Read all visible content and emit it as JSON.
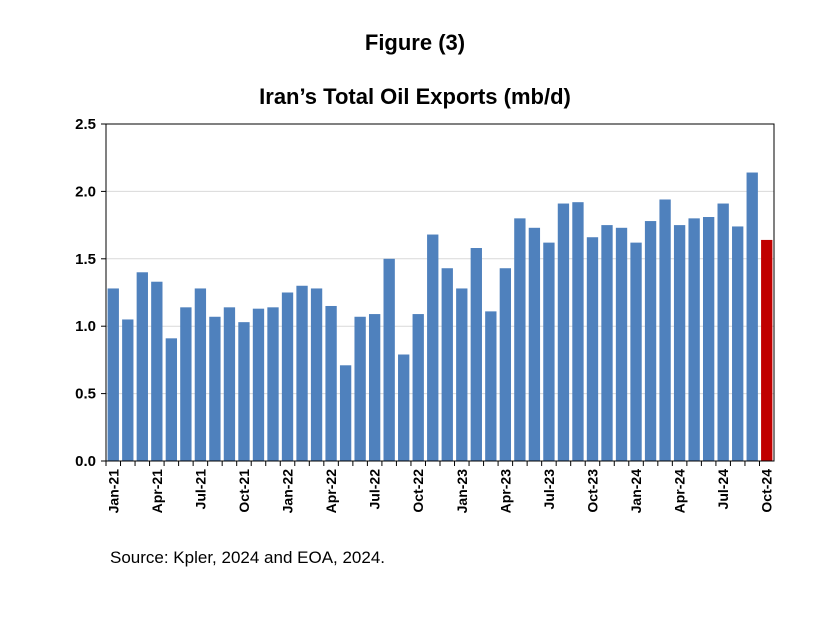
{
  "figure_label": "Figure (3)",
  "source": "Source: Kpler, 2024 and EOA, 2024.",
  "colors": {
    "bar": "#4f81bd",
    "highlight": "#c00000",
    "grid": "#d9d9d9",
    "axis": "#000000"
  },
  "chart_data": {
    "type": "bar",
    "title": "Iran’s Total Oil Exports (mb/d)",
    "xlabel": "",
    "ylabel": "",
    "ylim": [
      0,
      2.5
    ],
    "yticks": [
      "0.0",
      "0.5",
      "1.0",
      "1.5",
      "2.0",
      "2.5"
    ],
    "grid": true,
    "categories": [
      "Jan-21",
      "Feb-21",
      "Mar-21",
      "Apr-21",
      "May-21",
      "Jun-21",
      "Jul-21",
      "Aug-21",
      "Sep-21",
      "Oct-21",
      "Nov-21",
      "Dec-21",
      "Jan-22",
      "Feb-22",
      "Mar-22",
      "Apr-22",
      "May-22",
      "Jun-22",
      "Jul-22",
      "Aug-22",
      "Sep-22",
      "Oct-22",
      "Nov-22",
      "Dec-22",
      "Jan-23",
      "Feb-23",
      "Mar-23",
      "Apr-23",
      "May-23",
      "Jun-23",
      "Jul-23",
      "Aug-23",
      "Sep-23",
      "Oct-23",
      "Nov-23",
      "Dec-23",
      "Jan-24",
      "Feb-24",
      "Mar-24",
      "Apr-24",
      "May-24",
      "Jun-24",
      "Jul-24",
      "Aug-24",
      "Sep-24",
      "Oct-24"
    ],
    "visible_tick_labels": [
      "Jan-21",
      "Apr-21",
      "Jul-21",
      "Oct-21",
      "Jan-22",
      "Apr-22",
      "Jul-22",
      "Oct-22",
      "Jan-23",
      "Apr-23",
      "Jul-23",
      "Oct-23",
      "Jan-24",
      "Apr-24",
      "Jul-24",
      "Oct-24"
    ],
    "values": [
      1.28,
      1.05,
      1.4,
      1.33,
      0.91,
      1.14,
      1.28,
      1.07,
      1.14,
      1.03,
      1.13,
      1.14,
      1.25,
      1.3,
      1.28,
      1.15,
      0.71,
      1.07,
      1.09,
      1.5,
      0.79,
      1.09,
      1.68,
      1.43,
      1.28,
      1.58,
      1.11,
      1.43,
      1.8,
      1.73,
      1.62,
      1.91,
      1.92,
      1.66,
      1.75,
      1.73,
      1.62,
      1.78,
      1.94,
      1.75,
      1.8,
      1.81,
      1.91,
      1.74,
      2.14,
      1.64
    ],
    "highlight_index": 45
  }
}
